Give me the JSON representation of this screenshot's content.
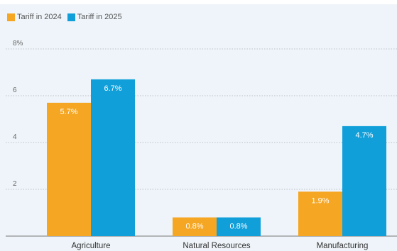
{
  "colors": {
    "tariff_2024": "#f5a623",
    "tariff_2025": "#109fd9",
    "background": "#eef4f9",
    "grid": "#aab0b6",
    "axis": "#777777"
  },
  "chart_data": {
    "type": "bar",
    "title": "",
    "xlabel": "",
    "ylabel": "",
    "categories": [
      "Agriculture",
      "Natural Resources",
      "Manufacturing"
    ],
    "series": [
      {
        "name": "Tariff in 2024",
        "values": [
          5.7,
          0.8,
          1.9
        ],
        "labels": [
          "5.7%",
          "0.8%",
          "1.9%"
        ]
      },
      {
        "name": "Tariff in 2025",
        "values": [
          6.7,
          0.8,
          4.7
        ],
        "labels": [
          "6.7%",
          "0.8%",
          "4.7%"
        ]
      }
    ],
    "ylim": [
      0,
      8
    ],
    "yticks": [
      2,
      4,
      6,
      8
    ],
    "ytick_labels": [
      "2",
      "4",
      "6",
      "8%"
    ],
    "grid": true,
    "legend_position": "top-left"
  }
}
